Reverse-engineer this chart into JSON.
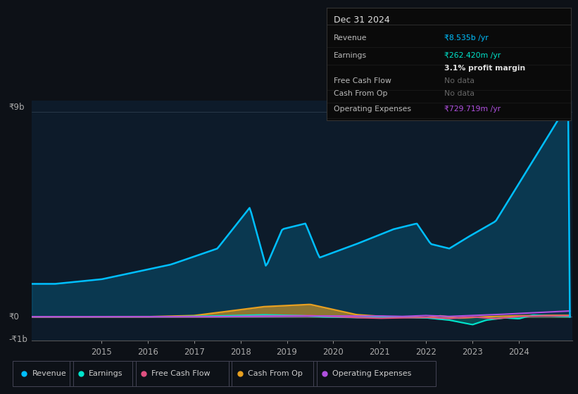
{
  "bg_color": "#0d1117",
  "plot_bg_color": "#0d1b2a",
  "y_label_top": "₹9b",
  "y_label_zero": "₹0",
  "y_label_neg": "-₹1b",
  "x_ticks": [
    2015,
    2016,
    2017,
    2018,
    2019,
    2020,
    2021,
    2022,
    2023,
    2024
  ],
  "ylim": [
    -1050000000.0,
    9500000000.0
  ],
  "revenue_color": "#00bfff",
  "earnings_color": "#00e5cc",
  "fcf_color": "#e05080",
  "cashfromop_color": "#e8a020",
  "opex_color": "#b050e0",
  "info_title": "Dec 31 2024",
  "info_revenue_label": "Revenue",
  "info_revenue_val": "₹8.535b /yr",
  "info_earnings_label": "Earnings",
  "info_earnings_val": "₹262.420m /yr",
  "info_margin": "3.1% profit margin",
  "info_fcf_label": "Free Cash Flow",
  "info_fcf_val": "No data",
  "info_cashop_label": "Cash From Op",
  "info_cashop_val": "No data",
  "info_opex_label": "Operating Expenses",
  "info_opex_val": "₹729.719m /yr",
  "legend_labels": [
    "Revenue",
    "Earnings",
    "Free Cash Flow",
    "Cash From Op",
    "Operating Expenses"
  ]
}
